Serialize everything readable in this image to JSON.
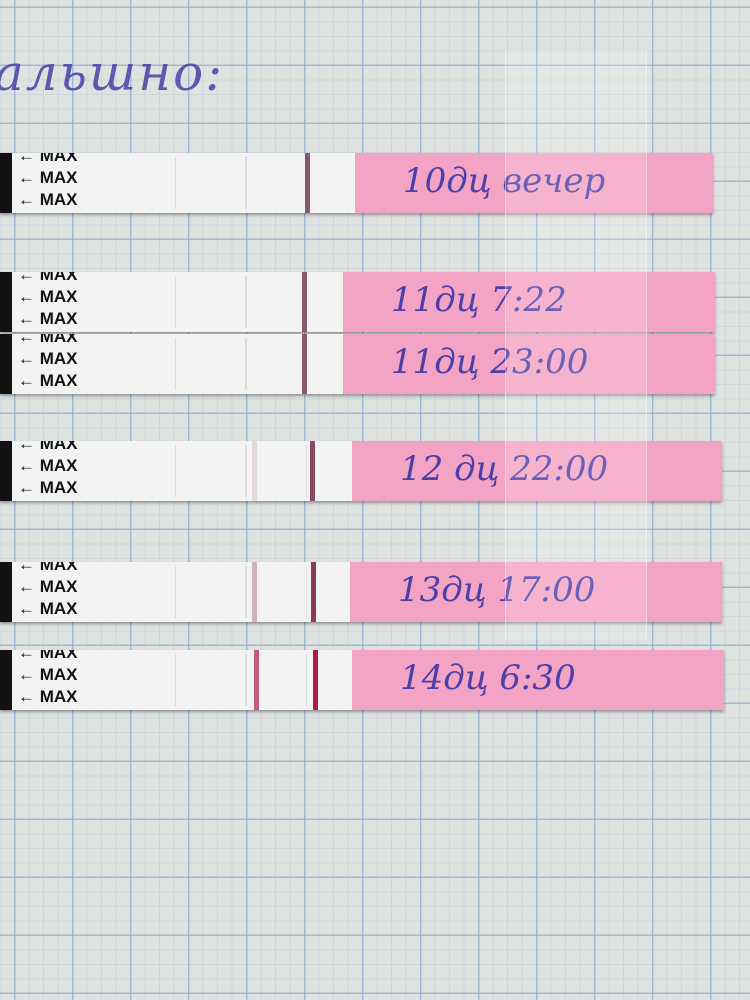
{
  "heading": "альшно:",
  "strips": [
    {
      "label": "10дц вечер",
      "marker": "MAX",
      "test_line": "none",
      "control_color": "#8a5a6a"
    },
    {
      "label": "11дц 7:22",
      "marker": "MAX",
      "test_line": "none",
      "control_color": "#8a5a6a"
    },
    {
      "label": "11дц 23:00",
      "marker": "MAX",
      "test_line": "none",
      "control_color": "#8a5a6a"
    },
    {
      "label": "12 дц 22:00",
      "marker": "MAX",
      "test_line": "very faint",
      "control_color": "#8a4a62"
    },
    {
      "label": "13дц 17:00",
      "marker": "MAX",
      "test_line": "faint",
      "control_color": "#8a3a5a"
    },
    {
      "label": "14дц 6:30",
      "marker": "MAX",
      "test_line": "medium",
      "control_color": "#b01a4a"
    }
  ],
  "colors": {
    "ink": "#4b3fa8",
    "strip_pink": "#f3a3c3",
    "grid": "#78a0d2"
  }
}
